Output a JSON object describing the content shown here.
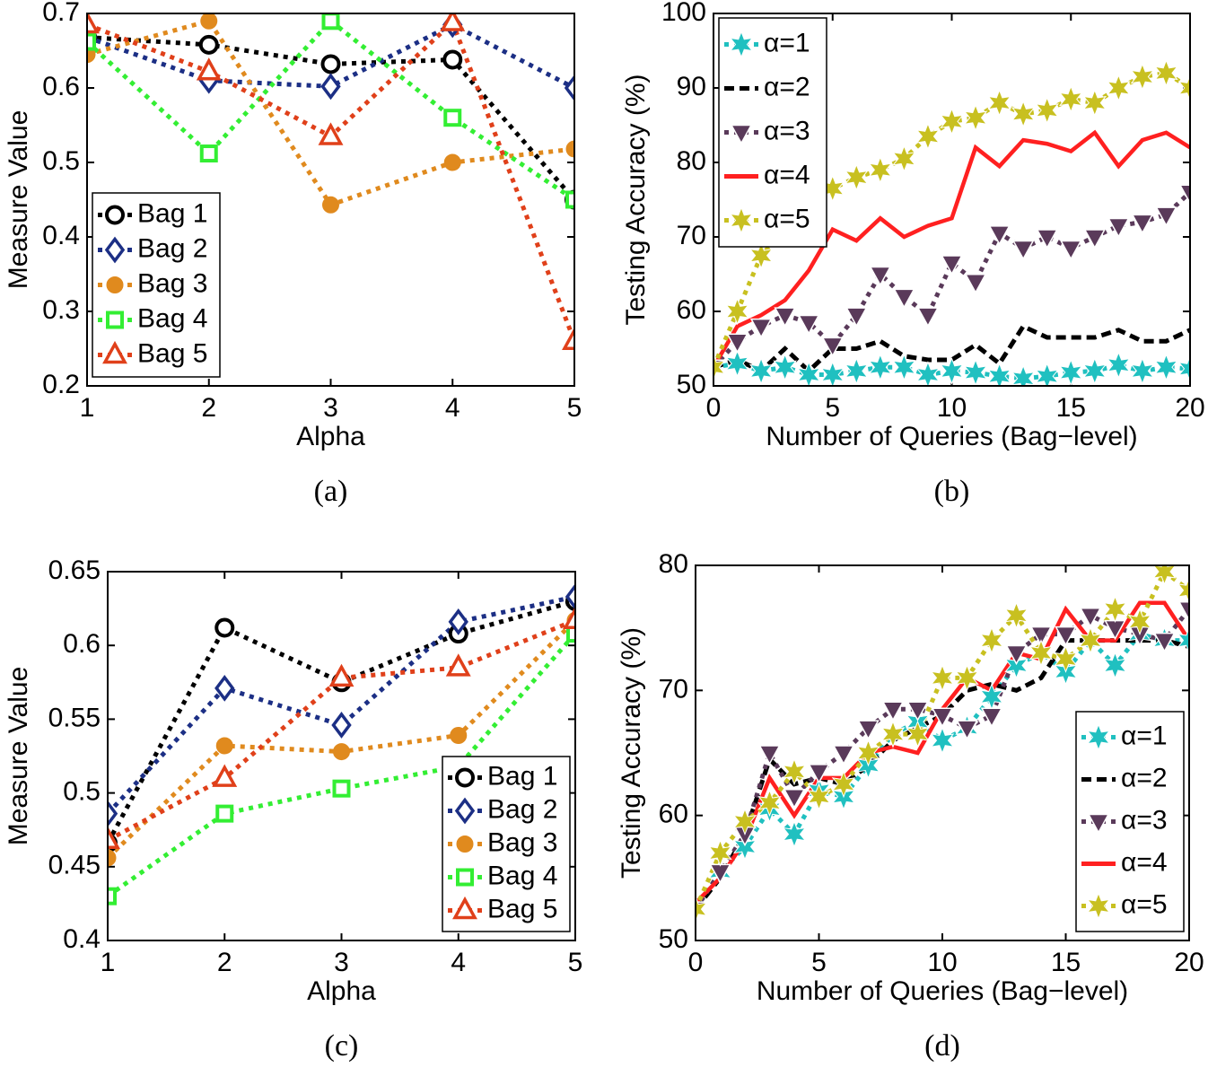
{
  "chart_data": [
    {
      "type": "line",
      "caption": "(a)",
      "xlabel": "Alpha",
      "ylabel": "Measure Value",
      "x": [
        1,
        2,
        3,
        4,
        5
      ],
      "xlim": [
        1,
        5
      ],
      "xticks": [
        1,
        2,
        3,
        4,
        5
      ],
      "ylim": [
        0.2,
        0.7
      ],
      "yticks": [
        0.2,
        0.3,
        0.4,
        0.5,
        0.6,
        0.7
      ],
      "legend": "lower left",
      "series": [
        {
          "name": "Bag 1",
          "color": "#000000",
          "marker": "circle-open",
          "linestyle": "dotted",
          "values": [
            0.668,
            0.658,
            0.632,
            0.638,
            0.45
          ]
        },
        {
          "name": "Bag 2",
          "color": "#1c2f85",
          "marker": "diamond-open",
          "linestyle": "dotted",
          "values": [
            0.668,
            0.61,
            0.602,
            0.685,
            0.6
          ]
        },
        {
          "name": "Bag 3",
          "color": "#e08a1e",
          "marker": "circle-filled",
          "linestyle": "dotted",
          "values": [
            0.645,
            0.69,
            0.443,
            0.5,
            0.518
          ]
        },
        {
          "name": "Bag 4",
          "color": "#33ee33",
          "marker": "square-open",
          "linestyle": "dotted",
          "values": [
            0.662,
            0.512,
            0.69,
            0.56,
            0.45
          ]
        },
        {
          "name": "Bag 5",
          "color": "#e0401a",
          "marker": "triangle-open",
          "linestyle": "dotted",
          "values": [
            0.685,
            0.622,
            0.535,
            0.688,
            0.26
          ]
        }
      ]
    },
    {
      "type": "line",
      "caption": "(b)",
      "xlabel": "Number of Queries (Bag−level)",
      "ylabel": "Testing Accuracy (%)",
      "x": [
        0,
        1,
        2,
        3,
        4,
        5,
        6,
        7,
        8,
        9,
        10,
        11,
        12,
        13,
        14,
        15,
        16,
        17,
        18,
        19,
        20
      ],
      "xlim": [
        0,
        20
      ],
      "xticks": [
        0,
        5,
        10,
        15,
        20
      ],
      "ylim": [
        50,
        100
      ],
      "yticks": [
        50,
        60,
        70,
        80,
        90,
        100
      ],
      "legend": "upper left",
      "series": [
        {
          "name": "α=1",
          "color": "#20c0c0",
          "marker": "star",
          "linestyle": "dotted",
          "values": [
            52.5,
            53,
            52,
            52.5,
            51.5,
            51.5,
            52,
            52.5,
            52.5,
            51.5,
            52,
            51.8,
            51.3,
            51,
            51.3,
            51.8,
            52,
            52.8,
            52,
            52.5,
            52.3
          ]
        },
        {
          "name": "α=2",
          "color": "#000000",
          "marker": "none",
          "linestyle": "dashed",
          "values": [
            52.5,
            53.5,
            52,
            55,
            52,
            55,
            55,
            56,
            54,
            53.5,
            53.5,
            55.5,
            53,
            58,
            56.5,
            56.5,
            56.5,
            57.5,
            56,
            56,
            57.5
          ]
        },
        {
          "name": "α=3",
          "color": "#5a3a5a",
          "marker": "triangle-down",
          "linestyle": "dotted",
          "values": [
            52.5,
            56,
            58,
            59.5,
            58.5,
            55.5,
            59.5,
            65,
            62,
            59.5,
            66.5,
            64,
            70.5,
            68.5,
            70,
            68.5,
            70,
            71.5,
            72,
            73,
            76
          ]
        },
        {
          "name": "α=4",
          "color": "#ff2020",
          "marker": "none",
          "linestyle": "solid",
          "values": [
            52.5,
            58,
            59.5,
            61.5,
            65.5,
            71,
            69.5,
            72.5,
            70,
            71.5,
            72.5,
            82,
            79.5,
            83,
            82.5,
            81.5,
            84,
            79.5,
            83,
            84,
            82
          ]
        },
        {
          "name": "α=5",
          "color": "#c8c020",
          "marker": "star",
          "linestyle": "dotted",
          "values": [
            52.5,
            60,
            67.5,
            71,
            75,
            76.5,
            78,
            79,
            80.5,
            83.5,
            85.5,
            86,
            88,
            86.5,
            87,
            88.5,
            88,
            90,
            91.5,
            92,
            90
          ]
        }
      ]
    },
    {
      "type": "line",
      "caption": "(c)",
      "xlabel": "Alpha",
      "ylabel": "Measure Value",
      "x": [
        1,
        2,
        3,
        4,
        5
      ],
      "xlim": [
        1,
        5
      ],
      "xticks": [
        1,
        2,
        3,
        4,
        5
      ],
      "ylim": [
        0.4,
        0.65
      ],
      "yticks": [
        0.4,
        0.45,
        0.5,
        0.55,
        0.6,
        0.65
      ],
      "legend": "lower right",
      "series": [
        {
          "name": "Bag 1",
          "color": "#000000",
          "marker": "circle-open",
          "linestyle": "dotted",
          "values": [
            0.466,
            0.612,
            0.575,
            0.608,
            0.63
          ]
        },
        {
          "name": "Bag 2",
          "color": "#1c2f85",
          "marker": "diamond-open",
          "linestyle": "dotted",
          "values": [
            0.486,
            0.571,
            0.546,
            0.616,
            0.633
          ]
        },
        {
          "name": "Bag 3",
          "color": "#e08a1e",
          "marker": "circle-filled",
          "linestyle": "dotted",
          "values": [
            0.456,
            0.532,
            0.528,
            0.539,
            0.617
          ]
        },
        {
          "name": "Bag 4",
          "color": "#33ee33",
          "marker": "square-open",
          "linestyle": "dotted",
          "values": [
            0.43,
            0.486,
            0.503,
            0.518,
            0.608
          ]
        },
        {
          "name": "Bag 5",
          "color": "#e0401a",
          "marker": "triangle-open",
          "linestyle": "dotted",
          "values": [
            0.468,
            0.51,
            0.578,
            0.585,
            0.617
          ]
        }
      ]
    },
    {
      "type": "line",
      "caption": "(d)",
      "xlabel": "Number of Queries (Bag−level)",
      "ylabel": "Testing Accuracy (%)",
      "x": [
        0,
        1,
        2,
        3,
        4,
        5,
        6,
        7,
        8,
        9,
        10,
        11,
        12,
        13,
        14,
        15,
        16,
        17,
        18,
        19,
        20
      ],
      "xlim": [
        0,
        20
      ],
      "xticks": [
        0,
        5,
        10,
        15,
        20
      ],
      "ylim": [
        50,
        80
      ],
      "yticks": [
        50,
        60,
        70,
        80
      ],
      "legend": "lower right",
      "series": [
        {
          "name": "α=1",
          "color": "#20c0c0",
          "marker": "star",
          "linestyle": "dotted",
          "values": [
            52.5,
            55.5,
            57.5,
            60.5,
            58.5,
            62,
            61.5,
            64,
            66.5,
            67.5,
            66,
            67,
            69.5,
            72,
            73,
            71.5,
            74,
            72,
            74.5,
            74,
            74
          ]
        },
        {
          "name": "α=2",
          "color": "#000000",
          "marker": "none",
          "linestyle": "dashed",
          "values": [
            52.5,
            55,
            58.5,
            64.5,
            62.5,
            63,
            62.5,
            64,
            66,
            67,
            68,
            70,
            70.5,
            70,
            71,
            74,
            74,
            74,
            74,
            74,
            73.5
          ]
        },
        {
          "name": "α=3",
          "color": "#5a3a5a",
          "marker": "triangle-down",
          "linestyle": "dotted",
          "values": [
            52.5,
            55.5,
            58.5,
            65,
            61.5,
            63.5,
            65,
            67,
            68.5,
            68.5,
            68,
            67,
            68,
            73,
            74.5,
            74.5,
            76,
            75,
            74.5,
            74,
            76.5
          ]
        },
        {
          "name": "α=4",
          "color": "#ff2020",
          "marker": "none",
          "linestyle": "solid",
          "values": [
            53,
            55,
            58,
            63,
            60,
            63,
            63,
            65,
            65.5,
            65,
            68.5,
            71,
            70,
            73,
            72.5,
            76.5,
            74,
            74,
            77,
            77,
            74
          ]
        },
        {
          "name": "α=5",
          "color": "#c8c020",
          "marker": "star",
          "linestyle": "dotted",
          "values": [
            52.5,
            57,
            59.5,
            61,
            63.5,
            61.5,
            62.5,
            65,
            66.5,
            66.5,
            71,
            71,
            74,
            76,
            73,
            72.5,
            74,
            76.5,
            75.5,
            79.5,
            78
          ]
        }
      ]
    }
  ]
}
